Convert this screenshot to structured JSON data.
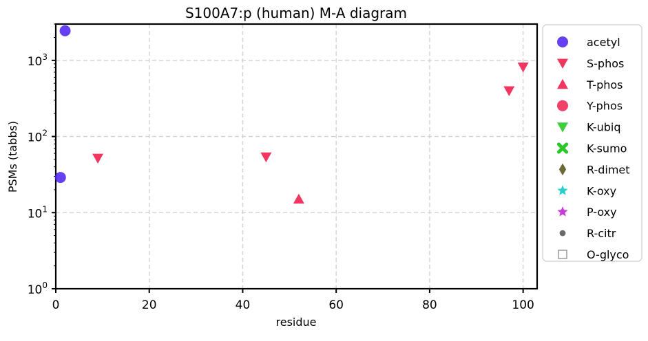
{
  "chart_data": {
    "type": "scatter",
    "title": "S100A7:p (human) M-A diagram",
    "xlabel": "residue",
    "ylabel": "PSMs (tabbs)",
    "xlim": [
      0,
      103
    ],
    "ylim": [
      1,
      3000
    ],
    "yscale": "log",
    "grid": true,
    "legend_position": "outside-right",
    "x_ticks": [
      {
        "value": 0,
        "label": "0"
      },
      {
        "value": 20,
        "label": "20"
      },
      {
        "value": 40,
        "label": "40"
      },
      {
        "value": 60,
        "label": "60"
      },
      {
        "value": 80,
        "label": "80"
      },
      {
        "value": 100,
        "label": "100"
      }
    ],
    "y_ticks": [
      {
        "value": 1,
        "base": "10",
        "exp": "0"
      },
      {
        "value": 10,
        "base": "10",
        "exp": "1"
      },
      {
        "value": 100,
        "base": "10",
        "exp": "2"
      },
      {
        "value": 1000,
        "base": "10",
        "exp": "3"
      }
    ],
    "series": [
      {
        "name": "acetyl",
        "marker": "circle",
        "color": "#4a1ff0",
        "points": [
          {
            "x": 1,
            "y": 29
          },
          {
            "x": 2,
            "y": 2450
          }
        ]
      },
      {
        "name": "S-phos",
        "marker": "triangle-down",
        "color": "#f0204f",
        "points": [
          {
            "x": 9,
            "y": 52
          },
          {
            "x": 45,
            "y": 54
          },
          {
            "x": 97,
            "y": 400
          },
          {
            "x": 100,
            "y": 820
          }
        ]
      },
      {
        "name": "T-phos",
        "marker": "triangle-up",
        "color": "#f0204f",
        "points": [
          {
            "x": 52,
            "y": 15
          }
        ]
      },
      {
        "name": "Y-phos",
        "marker": "circle",
        "color": "#f0204f",
        "points": []
      },
      {
        "name": "K-ubiq",
        "marker": "triangle-down",
        "color": "#28c828",
        "points": []
      },
      {
        "name": "K-sumo",
        "marker": "x",
        "color": "#28c828",
        "points": []
      },
      {
        "name": "R-dimet",
        "marker": "diamond",
        "color": "#6b6a35",
        "points": []
      },
      {
        "name": "K-oxy",
        "marker": "star",
        "color": "#2ccfcf",
        "points": []
      },
      {
        "name": "P-oxy",
        "marker": "star",
        "color": "#c83ad9",
        "points": []
      },
      {
        "name": "R-citr",
        "marker": "small-circle",
        "color": "#6b6b6b",
        "points": []
      },
      {
        "name": "O-glyco",
        "marker": "square-open",
        "color": "#8a8a8a",
        "points": []
      }
    ]
  }
}
